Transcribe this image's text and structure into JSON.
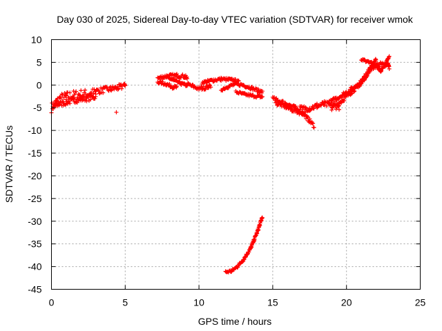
{
  "chart_data": {
    "type": "scatter",
    "title": "Day 030 of 2025, Sidereal Day-to-day VTEC variation (SDTVAR) for receiver wmok",
    "xlabel": "GPS time / hours",
    "ylabel": "SDTVAR / TECUs",
    "xlim": [
      0,
      25
    ],
    "ylim": [
      -45,
      10
    ],
    "xticks": [
      0,
      5,
      10,
      15,
      20,
      25
    ],
    "yticks": [
      10,
      5,
      0,
      -5,
      -10,
      -15,
      -20,
      -25,
      -30,
      -35,
      -40,
      -45
    ],
    "grid": true,
    "series_color": "#ff0000",
    "marker": "plus",
    "tracks": [
      {
        "name": "track-1",
        "points": [
          [
            0.0,
            -5.0
          ],
          [
            0.3,
            -4.0
          ],
          [
            0.6,
            -3.0
          ],
          [
            1.0,
            -2.6
          ],
          [
            1.5,
            -2.3
          ],
          [
            2.0,
            -2.1
          ],
          [
            2.5,
            -2.0
          ],
          [
            3.0,
            -1.7
          ]
        ],
        "thickness": 2.2
      },
      {
        "name": "track-2",
        "points": [
          [
            0.1,
            -4.8
          ],
          [
            0.5,
            -4.2
          ],
          [
            1.0,
            -3.8
          ],
          [
            1.5,
            -3.4
          ],
          [
            2.0,
            -3.1
          ],
          [
            2.5,
            -2.9
          ],
          [
            3.0,
            -2.6
          ]
        ],
        "thickness": 1.2
      },
      {
        "name": "track-3",
        "points": [
          [
            3.0,
            -1.4
          ],
          [
            3.5,
            -1.1
          ],
          [
            4.0,
            -0.9
          ],
          [
            4.5,
            -0.6
          ],
          [
            4.8,
            -0.4
          ]
        ],
        "thickness": 1.3
      },
      {
        "name": "track-4",
        "points": [
          [
            4.9,
            0.2
          ],
          [
            5.0,
            0.0
          ]
        ],
        "thickness": 0.4
      },
      {
        "name": "track-5",
        "points": [
          [
            7.2,
            1.5
          ],
          [
            7.6,
            1.8
          ],
          [
            8.0,
            2.0
          ],
          [
            8.5,
            2.1
          ],
          [
            9.0,
            1.9
          ],
          [
            9.2,
            1.5
          ]
        ],
        "thickness": 0.8
      },
      {
        "name": "track-6",
        "points": [
          [
            7.2,
            0.7
          ],
          [
            7.8,
            0.2
          ],
          [
            8.2,
            -0.4
          ],
          [
            8.5,
            -0.5
          ]
        ],
        "thickness": 0.7
      },
      {
        "name": "track-7",
        "points": [
          [
            7.8,
            1.8
          ],
          [
            8.3,
            1.0
          ],
          [
            8.8,
            0.3
          ],
          [
            9.2,
            -0.1
          ]
        ],
        "thickness": 0.6
      },
      {
        "name": "track-8",
        "points": [
          [
            9.2,
            0.2
          ],
          [
            9.6,
            -0.3
          ],
          [
            10.0,
            -0.8
          ],
          [
            10.4,
            -0.6
          ],
          [
            10.8,
            -0.2
          ]
        ],
        "thickness": 0.8
      },
      {
        "name": "track-9",
        "points": [
          [
            10.2,
            0.5
          ],
          [
            10.6,
            0.8
          ],
          [
            11.0,
            1.1
          ],
          [
            11.5,
            1.3
          ],
          [
            12.0,
            1.2
          ],
          [
            12.4,
            1.0
          ],
          [
            12.7,
            0.6
          ]
        ],
        "thickness": 0.7
      },
      {
        "name": "track-10",
        "points": [
          [
            11.5,
            -1.0
          ],
          [
            12.0,
            -0.3
          ],
          [
            12.5,
            0.2
          ],
          [
            13.0,
            0.0
          ],
          [
            13.5,
            -0.6
          ],
          [
            14.0,
            -1.2
          ],
          [
            14.3,
            -1.6
          ]
        ],
        "thickness": 0.7
      },
      {
        "name": "track-11",
        "points": [
          [
            12.5,
            -1.5
          ],
          [
            13.0,
            -2.0
          ],
          [
            13.5,
            -2.3
          ],
          [
            14.0,
            -2.5
          ],
          [
            14.3,
            -2.6
          ]
        ],
        "thickness": 0.6
      },
      {
        "name": "track-12",
        "points": [
          [
            11.8,
            -41.2
          ],
          [
            12.2,
            -41.0
          ],
          [
            12.6,
            -40.0
          ],
          [
            13.0,
            -38.5
          ],
          [
            13.5,
            -36.0
          ],
          [
            14.0,
            -32.0
          ],
          [
            14.3,
            -29.0
          ]
        ],
        "thickness": 0.6
      },
      {
        "name": "track-13",
        "points": [
          [
            15.0,
            -3.0
          ],
          [
            15.5,
            -3.6
          ],
          [
            16.0,
            -4.2
          ],
          [
            16.5,
            -5.0
          ],
          [
            17.0,
            -6.0
          ],
          [
            17.4,
            -7.5
          ],
          [
            17.8,
            -9.0
          ]
        ],
        "thickness": 0.9
      },
      {
        "name": "track-14",
        "points": [
          [
            15.2,
            -4.0
          ],
          [
            15.7,
            -4.5
          ],
          [
            16.2,
            -5.3
          ],
          [
            16.8,
            -6.0
          ],
          [
            17.2,
            -6.3
          ]
        ],
        "thickness": 0.9
      },
      {
        "name": "track-15",
        "points": [
          [
            16.8,
            -5.2
          ],
          [
            17.5,
            -5.1
          ],
          [
            18.0,
            -4.6
          ],
          [
            18.5,
            -4.2
          ],
          [
            19.0,
            -4.5
          ],
          [
            19.5,
            -4.8
          ]
        ],
        "thickness": 1.3
      },
      {
        "name": "track-16",
        "points": [
          [
            18.8,
            -4.0
          ],
          [
            19.3,
            -3.0
          ],
          [
            19.8,
            -2.0
          ],
          [
            20.3,
            -1.0
          ],
          [
            20.8,
            0.0
          ],
          [
            21.2,
            1.5
          ],
          [
            21.5,
            3.0
          ],
          [
            21.8,
            4.5
          ],
          [
            22.0,
            5.5
          ]
        ],
        "thickness": 1.0
      },
      {
        "name": "track-17",
        "points": [
          [
            19.0,
            -5.0
          ],
          [
            19.5,
            -4.0
          ],
          [
            20.0,
            -2.5
          ],
          [
            20.5,
            -1.0
          ],
          [
            21.0,
            0.5
          ],
          [
            21.3,
            2.0
          ],
          [
            21.6,
            3.5
          ],
          [
            22.0,
            4.3
          ],
          [
            22.5,
            4.8
          ]
        ],
        "thickness": 1.0
      },
      {
        "name": "track-18",
        "points": [
          [
            21.0,
            5.5
          ],
          [
            21.5,
            5.2
          ],
          [
            22.0,
            4.5
          ],
          [
            22.3,
            3.0
          ],
          [
            22.7,
            5.0
          ],
          [
            22.9,
            6.2
          ]
        ],
        "thickness": 0.5
      },
      {
        "name": "track-19",
        "points": [
          [
            22.6,
            4.0
          ],
          [
            22.8,
            4.8
          ],
          [
            22.9,
            3.8
          ]
        ],
        "thickness": 0.6
      }
    ],
    "isolated_points": [
      [
        4.4,
        -6.0
      ]
    ]
  }
}
